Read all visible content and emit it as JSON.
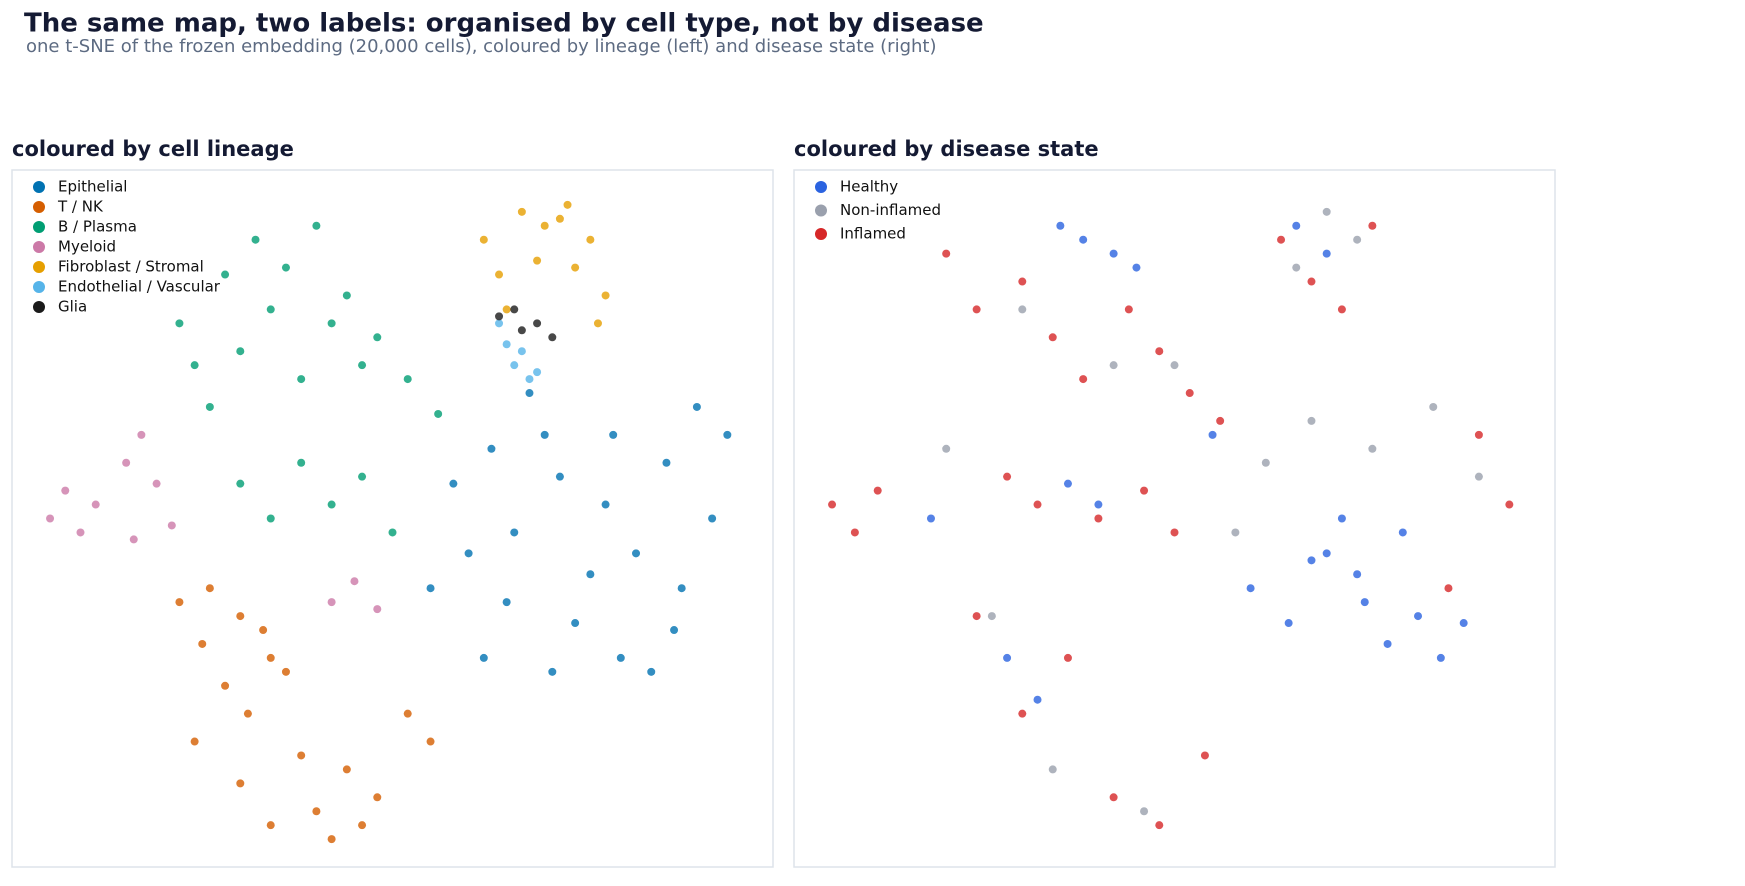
{
  "header": {
    "title": "The same map, two labels: organised by cell type, not by disease",
    "subtitle": "one t-SNE of the frozen embedding (20,000 cells), coloured by lineage (left) and disease state (right)"
  },
  "chart_data": [
    {
      "type": "scatter",
      "title": "coloured by cell lineage",
      "xlim": [
        0,
        100
      ],
      "ylim": [
        0,
        100
      ],
      "series": [
        {
          "name": "Epithelial",
          "color": "#0072b2",
          "x": [
            55,
            58,
            62,
            66,
            70,
            74,
            78,
            82,
            86,
            90,
            94,
            60,
            65,
            72,
            80,
            88,
            68,
            76,
            84,
            92,
            63,
            71,
            79,
            87
          ],
          "values": [
            40,
            55,
            30,
            48,
            62,
            35,
            52,
            45,
            58,
            66,
            62,
            45,
            38,
            56,
            30,
            40,
            68,
            42,
            28,
            50,
            60,
            28,
            62,
            34
          ]
        },
        {
          "name": "T / NK",
          "color": "#d55e00",
          "x": [
            22,
            25,
            28,
            31,
            34,
            26,
            30,
            33,
            24,
            36,
            40,
            44,
            48,
            52,
            55,
            42,
            46,
            30,
            34,
            38
          ],
          "values": [
            38,
            32,
            26,
            22,
            30,
            40,
            36,
            34,
            18,
            28,
            8,
            14,
            10,
            22,
            18,
            4,
            6,
            12,
            6,
            16
          ]
        },
        {
          "name": "B / Plasma",
          "color": "#009e73",
          "x": [
            22,
            24,
            28,
            32,
            36,
            40,
            44,
            48,
            52,
            56,
            30,
            34,
            38,
            42,
            46,
            26,
            30,
            34,
            38,
            42,
            46,
            50
          ],
          "values": [
            78,
            72,
            85,
            90,
            86,
            92,
            82,
            76,
            70,
            65,
            74,
            80,
            70,
            78,
            72,
            66,
            55,
            50,
            58,
            52,
            56,
            48
          ]
        },
        {
          "name": "Myeloid",
          "color": "#cc79a7",
          "x": [
            5,
            7,
            9,
            11,
            15,
            17,
            19,
            21,
            16,
            42,
            45,
            48
          ],
          "values": [
            50,
            54,
            48,
            52,
            58,
            62,
            55,
            49,
            47,
            38,
            41,
            37
          ]
        },
        {
          "name": "Fibroblast / Stromal",
          "color": "#e69f00",
          "x": [
            62,
            64,
            67,
            70,
            73,
            76,
            78,
            65,
            69,
            74,
            77,
            72
          ],
          "values": [
            90,
            85,
            94,
            92,
            95,
            90,
            82,
            80,
            87,
            86,
            78,
            93
          ]
        },
        {
          "name": "Endothelial / Vascular",
          "color": "#56b4e9",
          "x": [
            64,
            65,
            66,
            67,
            68,
            69
          ],
          "values": [
            78,
            75,
            72,
            74,
            70,
            71
          ]
        },
        {
          "name": "Glia",
          "color": "#1a1a1a",
          "x": [
            64,
            66,
            67,
            69,
            71
          ],
          "values": [
            79,
            80,
            77,
            78,
            76
          ]
        }
      ]
    },
    {
      "type": "scatter",
      "title": "coloured by disease state",
      "xlim": [
        0,
        100
      ],
      "ylim": [
        0,
        100
      ],
      "series": [
        {
          "name": "Healthy",
          "color": "#2b63e0",
          "x": [
            60,
            65,
            70,
            72,
            75,
            78,
            82,
            85,
            68,
            74,
            80,
            88,
            35,
            38,
            42,
            45,
            36,
            40,
            28,
            32,
            55,
            18,
            66,
            70
          ],
          "values": [
            40,
            35,
            45,
            50,
            38,
            32,
            36,
            30,
            44,
            42,
            48,
            35,
            92,
            90,
            88,
            86,
            55,
            52,
            30,
            24,
            62,
            50,
            92,
            88
          ]
        },
        {
          "name": "Non-inflamed",
          "color": "#9aa0ad",
          "x": [
            62,
            68,
            76,
            84,
            90,
            30,
            42,
            50,
            26,
            34,
            70,
            74,
            58,
            46,
            20,
            66
          ],
          "values": [
            58,
            64,
            60,
            66,
            56,
            80,
            72,
            72,
            36,
            14,
            94,
            90,
            48,
            8,
            60,
            86
          ]
        },
        {
          "name": "Inflamed",
          "color": "#d62728",
          "x": [
            5,
            8,
            11,
            20,
            24,
            30,
            34,
            38,
            44,
            48,
            52,
            56,
            28,
            32,
            40,
            46,
            50,
            24,
            30,
            36,
            42,
            48,
            54,
            64,
            68,
            72,
            76,
            90,
            94,
            86
          ],
          "values": [
            52,
            48,
            54,
            88,
            80,
            84,
            76,
            70,
            80,
            74,
            68,
            64,
            56,
            52,
            50,
            54,
            48,
            36,
            22,
            30,
            10,
            6,
            16,
            90,
            84,
            80,
            92,
            62,
            52,
            40
          ]
        }
      ]
    }
  ]
}
